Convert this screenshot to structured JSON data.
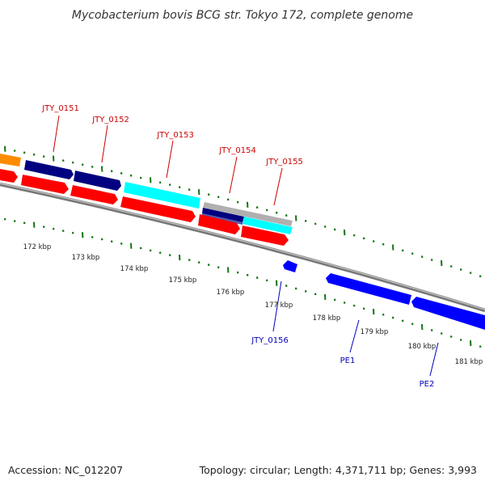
{
  "title": "Mycobacterium bovis BCG str. Tokyo 172, complete genome",
  "footer": {
    "accession": "Accession: NC_012207",
    "summary": "Topology: circular; Length: 4,371,711 bp; Genes: 3,993"
  },
  "colors": {
    "title": "#333333",
    "backbone": "#8a8a8a",
    "tick": "#117711",
    "forward_label": "#cc0000",
    "reverse_label": "#0000bb",
    "navy": "#000080",
    "red": "#ff0000",
    "cyan": "#00ffff",
    "orange": "#ff8c00",
    "blue": "#0000ff",
    "gray": "#b0b0b0",
    "slate": "#5555aa"
  },
  "scale_labels": [
    "172 kbp",
    "173 kbp",
    "174 kbp",
    "175 kbp",
    "176 kbp",
    "177 kbp",
    "178 kbp",
    "179 kbp",
    "180 kbp",
    "181 kbp"
  ],
  "forward_gene_labels": [
    "JTY_0151",
    "JTY_0152",
    "JTY_0153",
    "JTY_0154",
    "JTY_0155"
  ],
  "reverse_gene_labels": [
    "JTY_0156",
    "PE1",
    "PE2"
  ]
}
